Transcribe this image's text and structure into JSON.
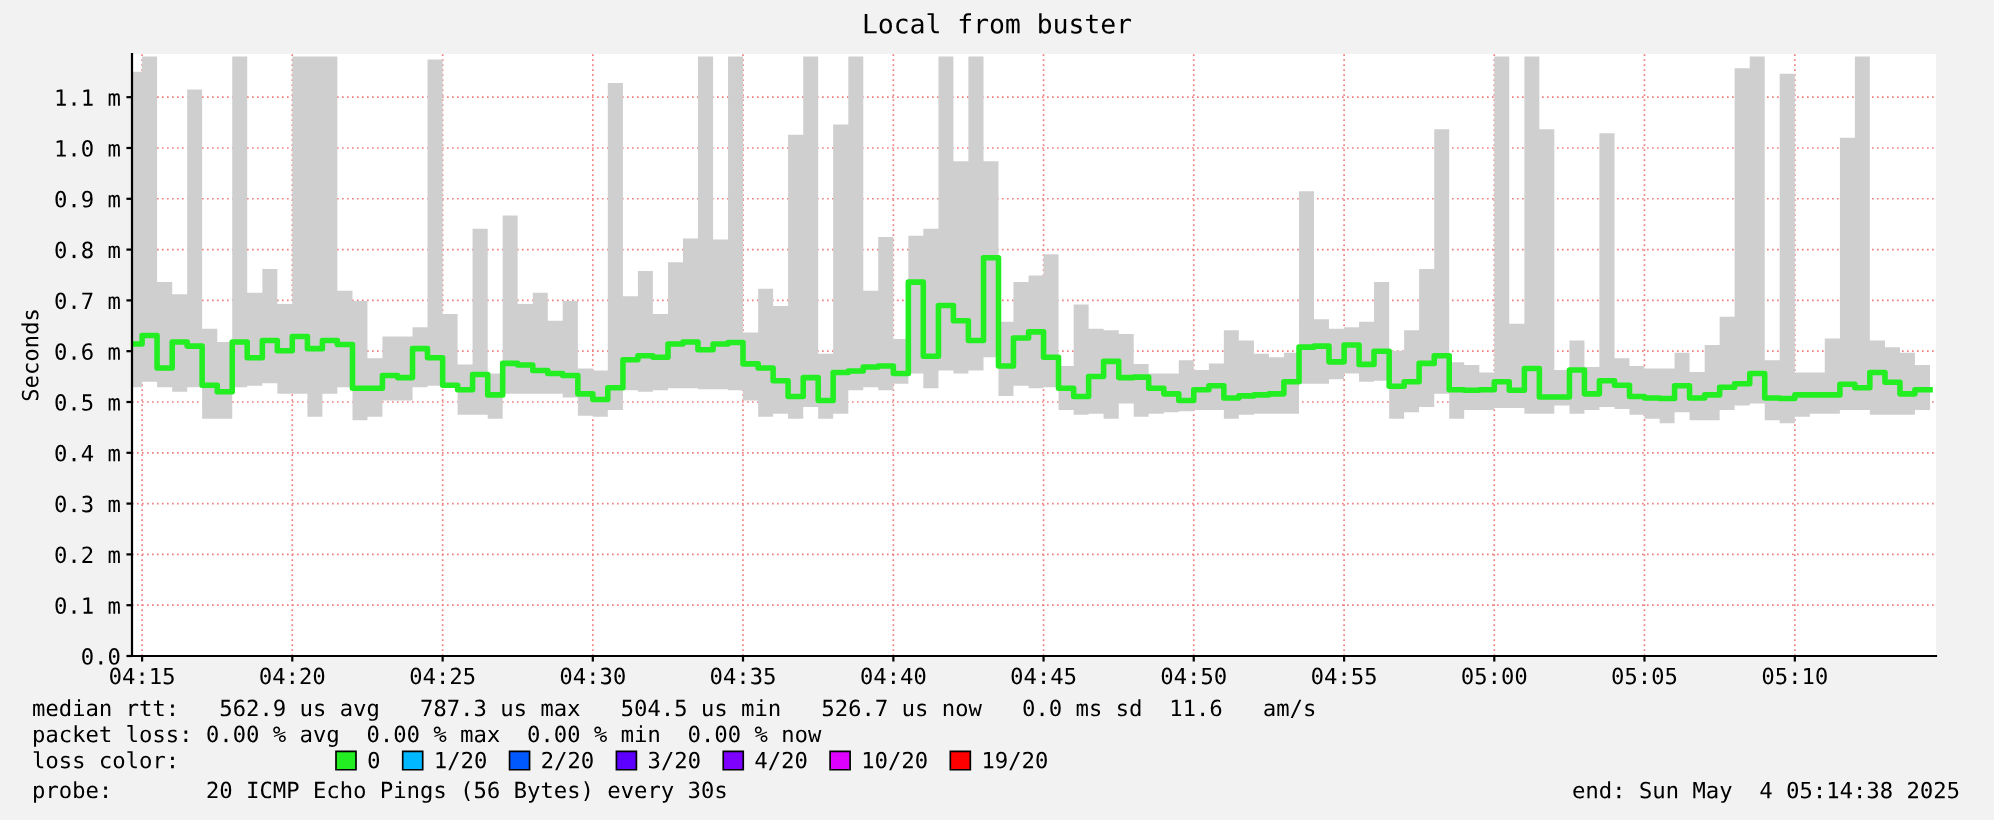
{
  "chart_data": {
    "type": "step",
    "title": "Local from buster",
    "ylabel": "Seconds",
    "x": [
      4.2444,
      4.25,
      4.2583,
      4.2667,
      4.275,
      4.2833,
      4.2917,
      4.3,
      4.3083,
      4.3167,
      4.325,
      4.3333,
      4.3417,
      4.35,
      4.3583,
      4.3667,
      4.375,
      4.3833,
      4.3917,
      4.4,
      4.4083,
      4.4167,
      4.425,
      4.4333,
      4.4417,
      4.45,
      4.4583,
      4.4667,
      4.475,
      4.4833,
      4.4917,
      4.5,
      4.5083,
      4.5167,
      4.525,
      4.5333,
      4.5417,
      4.55,
      4.5583,
      4.5667,
      4.575,
      4.5833,
      4.5917,
      4.6,
      4.6083,
      4.6167,
      4.625,
      4.6333,
      4.6417,
      4.65,
      4.6583,
      4.6667,
      4.675,
      4.6833,
      4.6917,
      4.7,
      4.7083,
      4.7167,
      4.725,
      4.7333,
      4.7417,
      4.75,
      4.7583,
      4.7667,
      4.775,
      4.7833,
      4.7917,
      4.8,
      4.8083,
      4.8167,
      4.825,
      4.8333,
      4.8417,
      4.85,
      4.8583,
      4.8667,
      4.875,
      4.8833,
      4.8917,
      4.9,
      4.9083,
      4.9167,
      4.925,
      4.9333,
      4.9417,
      4.95,
      4.9583,
      4.9667,
      4.975,
      4.9833,
      4.9917,
      5.0,
      5.0083,
      5.0167,
      5.025,
      5.0333,
      5.0417,
      5.05,
      5.0583,
      5.0667,
      5.075,
      5.0833,
      5.0917,
      5.1,
      5.1083,
      5.1167,
      5.125,
      5.1333,
      5.1417,
      5.15,
      5.1583,
      5.1667,
      5.175,
      5.1833,
      5.1917,
      5.2,
      5.2083,
      5.2167,
      5.225,
      5.2333,
      5.2417
    ],
    "series": [
      {
        "name": "0",
        "color": "#22ee22",
        "values": [
          0.614,
          0.631,
          0.567,
          0.618,
          0.61,
          0.533,
          0.52,
          0.618,
          0.587,
          0.621,
          0.601,
          0.629,
          0.605,
          0.621,
          0.613,
          0.527,
          0.527,
          0.552,
          0.548,
          0.605,
          0.587,
          0.533,
          0.524,
          0.554,
          0.514,
          0.576,
          0.573,
          0.562,
          0.556,
          0.552,
          0.516,
          0.505,
          0.528,
          0.583,
          0.591,
          0.588,
          0.614,
          0.618,
          0.603,
          0.614,
          0.617,
          0.575,
          0.567,
          0.542,
          0.511,
          0.548,
          0.503,
          0.558,
          0.561,
          0.569,
          0.571,
          0.556,
          0.736,
          0.59,
          0.69,
          0.66,
          0.621,
          0.784,
          0.571,
          0.626,
          0.638,
          0.588,
          0.527,
          0.511,
          0.55,
          0.58,
          0.548,
          0.549,
          0.527,
          0.516,
          0.503,
          0.524,
          0.532,
          0.508,
          0.512,
          0.514,
          0.516,
          0.54,
          0.608,
          0.61,
          0.579,
          0.612,
          0.574,
          0.6,
          0.531,
          0.54,
          0.576,
          0.591,
          0.524,
          0.523,
          0.524,
          0.54,
          0.523,
          0.566,
          0.51,
          0.51,
          0.563,
          0.516,
          0.542,
          0.533,
          0.511,
          0.508,
          0.507,
          0.532,
          0.508,
          0.514,
          0.529,
          0.536,
          0.556,
          0.508,
          0.507,
          0.514,
          0.514,
          0.514,
          0.535,
          0.528,
          0.558,
          0.539,
          0.516,
          0.524,
          0.524
        ],
        "lower": [
          0.529,
          0.54,
          0.529,
          0.52,
          0.529,
          0.467,
          0.467,
          0.529,
          0.532,
          0.537,
          0.516,
          0.516,
          0.471,
          0.516,
          0.529,
          0.464,
          0.471,
          0.503,
          0.503,
          0.529,
          0.532,
          0.529,
          0.475,
          0.475,
          0.467,
          0.516,
          0.516,
          0.516,
          0.516,
          0.509,
          0.473,
          0.471,
          0.484,
          0.523,
          0.52,
          0.523,
          0.527,
          0.527,
          0.525,
          0.525,
          0.523,
          0.503,
          0.471,
          0.477,
          0.467,
          0.49,
          0.467,
          0.477,
          0.523,
          0.529,
          0.523,
          0.536,
          0.556,
          0.527,
          0.562,
          0.556,
          0.562,
          0.588,
          0.512,
          0.532,
          0.527,
          0.529,
          0.484,
          0.475,
          0.477,
          0.467,
          0.497,
          0.471,
          0.477,
          0.48,
          0.482,
          0.484,
          0.484,
          0.467,
          0.475,
          0.477,
          0.477,
          0.477,
          0.536,
          0.536,
          0.545,
          0.556,
          0.54,
          0.542,
          0.467,
          0.48,
          0.49,
          0.516,
          0.467,
          0.484,
          0.484,
          0.488,
          0.488,
          0.477,
          0.477,
          0.493,
          0.477,
          0.484,
          0.49,
          0.486,
          0.475,
          0.467,
          0.458,
          0.48,
          0.464,
          0.464,
          0.484,
          0.493,
          0.497,
          0.464,
          0.458,
          0.471,
          0.477,
          0.477,
          0.484,
          0.484,
          0.475,
          0.475,
          0.475,
          0.484,
          0.484
        ],
        "upper": [
          1.15,
          1.18,
          0.736,
          0.712,
          1.115,
          0.644,
          0.618,
          1.18,
          0.715,
          0.762,
          0.693,
          1.18,
          1.18,
          1.18,
          0.719,
          0.699,
          0.586,
          0.629,
          0.629,
          0.647,
          1.174,
          0.673,
          0.574,
          0.841,
          0.556,
          0.867,
          0.693,
          0.715,
          0.66,
          0.699,
          0.566,
          0.562,
          1.128,
          0.708,
          0.758,
          0.673,
          0.775,
          0.822,
          1.18,
          0.82,
          1.18,
          0.637,
          0.723,
          0.689,
          1.026,
          1.18,
          0.595,
          1.046,
          1.18,
          0.719,
          0.825,
          0.624,
          0.827,
          0.841,
          1.18,
          0.974,
          1.18,
          0.974,
          0.658,
          0.736,
          0.749,
          0.791,
          0.571,
          0.692,
          0.644,
          0.641,
          0.634,
          0.575,
          0.556,
          0.556,
          0.582,
          0.563,
          0.576,
          0.641,
          0.621,
          0.595,
          0.588,
          0.597,
          0.915,
          0.663,
          0.644,
          0.647,
          0.658,
          0.736,
          0.601,
          0.641,
          0.762,
          1.037,
          0.578,
          0.573,
          0.558,
          1.18,
          0.654,
          1.18,
          1.037,
          0.563,
          0.621,
          0.569,
          1.029,
          0.586,
          0.571,
          0.566,
          0.566,
          0.597,
          0.559,
          0.612,
          0.668,
          1.157,
          1.18,
          0.582,
          1.146,
          0.558,
          0.558,
          0.625,
          1.02,
          1.18,
          0.621,
          0.608,
          0.597,
          0.573,
          0.573
        ]
      },
      {
        "name": "1/20",
        "color": "#00b8ff",
        "values": [
          null,
          null,
          null,
          null,
          null,
          null,
          null,
          null,
          null,
          null,
          null,
          null,
          null,
          null,
          null,
          null,
          null,
          null,
          null,
          null,
          null,
          null,
          null,
          null,
          null,
          null,
          null,
          null,
          null,
          null,
          null,
          null,
          null,
          null,
          null,
          null,
          null,
          null,
          null,
          null,
          null,
          null,
          null,
          null,
          null,
          null,
          null,
          null,
          null,
          null,
          null,
          null,
          null,
          null,
          null,
          null,
          null,
          null,
          null,
          null,
          null,
          null,
          null,
          null,
          null,
          null,
          null,
          null,
          null,
          null,
          null,
          null,
          null,
          null,
          null,
          null,
          null,
          null,
          null,
          null,
          null,
          null,
          null,
          null,
          null,
          null,
          null,
          null,
          null,
          null,
          null,
          null,
          null,
          null,
          null,
          null,
          null,
          null,
          null,
          null,
          null,
          null,
          null,
          null,
          null,
          null,
          null,
          null,
          null,
          null,
          null,
          null,
          null,
          null,
          null,
          null,
          null,
          null,
          null,
          null,
          null
        ]
      },
      {
        "name": "2/20",
        "color": "#0059ff",
        "values": [
          null,
          null,
          null,
          null,
          null,
          null,
          null,
          null,
          null,
          null,
          null,
          null,
          null,
          null,
          null,
          null,
          null,
          null,
          null,
          null,
          null,
          null,
          null,
          null,
          null,
          null,
          null,
          null,
          null,
          null,
          null,
          null,
          null,
          null,
          null,
          null,
          null,
          null,
          null,
          null,
          null,
          null,
          null,
          null,
          null,
          null,
          null,
          null,
          null,
          null,
          null,
          null,
          null,
          null,
          null,
          null,
          null,
          null,
          null,
          null,
          null,
          null,
          null,
          null,
          null,
          null,
          null,
          null,
          null,
          null,
          null,
          null,
          null,
          null,
          null,
          null,
          null,
          null,
          null,
          null,
          null,
          null,
          null,
          null,
          null,
          null,
          null,
          null,
          null,
          null,
          null,
          null,
          null,
          null,
          null,
          null,
          null,
          null,
          null,
          null,
          null,
          null,
          null,
          null,
          null,
          null,
          null,
          null,
          null,
          null,
          null,
          null,
          null,
          null,
          null,
          null,
          null,
          null,
          null,
          null,
          null
        ]
      },
      {
        "name": "3/20",
        "color": "#5e00ff",
        "values": [
          null,
          null,
          null,
          null,
          null,
          null,
          null,
          null,
          null,
          null,
          null,
          null,
          null,
          null,
          null,
          null,
          null,
          null,
          null,
          null,
          null,
          null,
          null,
          null,
          null,
          null,
          null,
          null,
          null,
          null,
          null,
          null,
          null,
          null,
          null,
          null,
          null,
          null,
          null,
          null,
          null,
          null,
          null,
          null,
          null,
          null,
          null,
          null,
          null,
          null,
          null,
          null,
          null,
          null,
          null,
          null,
          null,
          null,
          null,
          null,
          null,
          null,
          null,
          null,
          null,
          null,
          null,
          null,
          null,
          null,
          null,
          null,
          null,
          null,
          null,
          null,
          null,
          null,
          null,
          null,
          null,
          null,
          null,
          null,
          null,
          null,
          null,
          null,
          null,
          null,
          null,
          null,
          null,
          null,
          null,
          null,
          null,
          null,
          null,
          null,
          null,
          null,
          null,
          null,
          null,
          null,
          null,
          null,
          null,
          null,
          null,
          null,
          null,
          null,
          null,
          null,
          null,
          null,
          null,
          null,
          null
        ]
      },
      {
        "name": "4/20",
        "color": "#7e00ff",
        "values": [
          null,
          null,
          null,
          null,
          null,
          null,
          null,
          null,
          null,
          null,
          null,
          null,
          null,
          null,
          null,
          null,
          null,
          null,
          null,
          null,
          null,
          null,
          null,
          null,
          null,
          null,
          null,
          null,
          null,
          null,
          null,
          null,
          null,
          null,
          null,
          null,
          null,
          null,
          null,
          null,
          null,
          null,
          null,
          null,
          null,
          null,
          null,
          null,
          null,
          null,
          null,
          null,
          null,
          null,
          null,
          null,
          null,
          null,
          null,
          null,
          null,
          null,
          null,
          null,
          null,
          null,
          null,
          null,
          null,
          null,
          null,
          null,
          null,
          null,
          null,
          null,
          null,
          null,
          null,
          null,
          null,
          null,
          null,
          null,
          null,
          null,
          null,
          null,
          null,
          null,
          null,
          null,
          null,
          null,
          null,
          null,
          null,
          null,
          null,
          null,
          null,
          null,
          null,
          null,
          null,
          null,
          null,
          null,
          null,
          null,
          null,
          null,
          null,
          null,
          null,
          null,
          null,
          null,
          null,
          null,
          null
        ]
      },
      {
        "name": "10/20",
        "color": "#dd00ff",
        "values": [
          null,
          null,
          null,
          null,
          null,
          null,
          null,
          null,
          null,
          null,
          null,
          null,
          null,
          null,
          null,
          null,
          null,
          null,
          null,
          null,
          null,
          null,
          null,
          null,
          null,
          null,
          null,
          null,
          null,
          null,
          null,
          null,
          null,
          null,
          null,
          null,
          null,
          null,
          null,
          null,
          null,
          null,
          null,
          null,
          null,
          null,
          null,
          null,
          null,
          null,
          null,
          null,
          null,
          null,
          null,
          null,
          null,
          null,
          null,
          null,
          null,
          null,
          null,
          null,
          null,
          null,
          null,
          null,
          null,
          null,
          null,
          null,
          null,
          null,
          null,
          null,
          null,
          null,
          null,
          null,
          null,
          null,
          null,
          null,
          null,
          null,
          null,
          null,
          null,
          null,
          null,
          null,
          null,
          null,
          null,
          null,
          null,
          null,
          null,
          null,
          null,
          null,
          null,
          null,
          null,
          null,
          null,
          null,
          null,
          null,
          null,
          null,
          null,
          null,
          null,
          null,
          null,
          null,
          null,
          null,
          null
        ]
      },
      {
        "name": "19/20",
        "color": "#ff0000",
        "values": [
          null,
          null,
          null,
          null,
          null,
          null,
          null,
          null,
          null,
          null,
          null,
          null,
          null,
          null,
          null,
          null,
          null,
          null,
          null,
          null,
          null,
          null,
          null,
          null,
          null,
          null,
          null,
          null,
          null,
          null,
          null,
          null,
          null,
          null,
          null,
          null,
          null,
          null,
          null,
          null,
          null,
          null,
          null,
          null,
          null,
          null,
          null,
          null,
          null,
          null,
          null,
          null,
          null,
          null,
          null,
          null,
          null,
          null,
          null,
          null,
          null,
          null,
          null,
          null,
          null,
          null,
          null,
          null,
          null,
          null,
          null,
          null,
          null,
          null,
          null,
          null,
          null,
          null,
          null,
          null,
          null,
          null,
          null,
          null,
          null,
          null,
          null,
          null,
          null,
          null,
          null,
          null,
          null,
          null,
          null,
          null,
          null,
          null,
          null,
          null,
          null,
          null,
          null,
          null,
          null,
          null,
          null,
          null,
          null,
          null,
          null,
          null,
          null,
          null,
          null,
          null,
          null,
          null,
          null,
          null,
          null
        ]
      }
    ],
    "legend": "bottom",
    "legend_title": "loss color:",
    "grid": true,
    "xlim": [
      4.2444,
      5.245
    ],
    "xticks": [
      {
        "value": 4.25,
        "label": "04:15"
      },
      {
        "value": 4.3333,
        "label": "04:20"
      },
      {
        "value": 4.4167,
        "label": "04:25"
      },
      {
        "value": 4.5,
        "label": "04:30"
      },
      {
        "value": 4.5833,
        "label": "04:35"
      },
      {
        "value": 4.6667,
        "label": "04:40"
      },
      {
        "value": 4.75,
        "label": "04:45"
      },
      {
        "value": 4.8333,
        "label": "04:50"
      },
      {
        "value": 4.9167,
        "label": "04:55"
      },
      {
        "value": 5.0,
        "label": "05:00"
      },
      {
        "value": 5.0833,
        "label": "05:05"
      },
      {
        "value": 5.1667,
        "label": "05:10"
      }
    ],
    "ylim": [
      0,
      1.185
    ],
    "yticks": [
      {
        "value": 0,
        "label": "0.0"
      },
      {
        "value": 0.1,
        "label": "0.1 m"
      },
      {
        "value": 0.2,
        "label": "0.2 m"
      },
      {
        "value": 0.3,
        "label": "0.3 m"
      },
      {
        "value": 0.4,
        "label": "0.4 m"
      },
      {
        "value": 0.5,
        "label": "0.5 m"
      },
      {
        "value": 0.6,
        "label": "0.6 m"
      },
      {
        "value": 0.7,
        "label": "0.7 m"
      },
      {
        "value": 0.8,
        "label": "0.8 m"
      },
      {
        "value": 0.9,
        "label": "0.9 m"
      },
      {
        "value": 1.0,
        "label": "1.0 m"
      },
      {
        "value": 1.1,
        "label": "1.1 m"
      }
    ],
    "annotations": [
      "median rtt:   562.9 us avg   787.3 us max   504.5 us min   526.7 us now   0.0 ms sd  11.6   am/s",
      "packet loss: 0.00 % avg  0.00 % max  0.00 % min  0.00 % now",
      "probe:       20 ICMP Echo Pings (56 Bytes) every 30s",
      "end: Sun May  4 05:14:38 2025"
    ]
  }
}
